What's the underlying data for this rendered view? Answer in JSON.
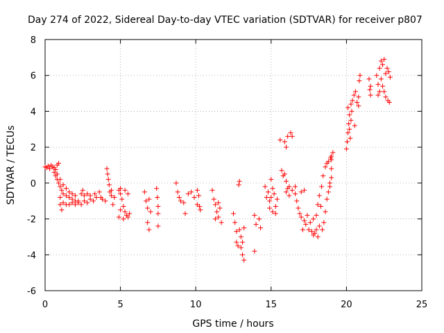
{
  "chart_data": {
    "type": "scatter",
    "title": "Day 274 of 2022, Sidereal Day-to-day VTEC variation (SDTVAR) for receiver p807",
    "xlabel": "GPS time / hours",
    "ylabel": "SDTVAR / TECUs",
    "xlim": [
      0,
      25
    ],
    "ylim": [
      -6,
      8
    ],
    "xticks": [
      0,
      5,
      10,
      15,
      20,
      25
    ],
    "yticks": [
      -6,
      -4,
      -2,
      0,
      2,
      4,
      6,
      8
    ],
    "xtick_labels": [
      "0",
      "5",
      "10",
      "15",
      "20",
      "25"
    ],
    "ytick_labels": [
      "-6",
      "-4",
      "-2",
      "0",
      "2",
      "4",
      "6",
      "8"
    ],
    "grid": true,
    "marker": "+",
    "color": "#ff0000",
    "series": [
      {
        "name": "SDTVAR",
        "points": [
          [
            0.0,
            0.9
          ],
          [
            0.1,
            0.85
          ],
          [
            0.2,
            0.95
          ],
          [
            0.3,
            0.8
          ],
          [
            0.4,
            1.0
          ],
          [
            0.5,
            0.9
          ],
          [
            0.6,
            0.85
          ],
          [
            0.7,
            0.75
          ],
          [
            0.8,
            1.0
          ],
          [
            0.9,
            1.1
          ],
          [
            0.6,
            0.6
          ],
          [
            0.7,
            0.4
          ],
          [
            0.8,
            0.2
          ],
          [
            0.9,
            0.0
          ],
          [
            1.0,
            -0.2
          ],
          [
            1.1,
            -0.4
          ],
          [
            1.2,
            -0.6
          ],
          [
            1.4,
            -0.7
          ],
          [
            1.6,
            -0.8
          ],
          [
            1.8,
            -0.9
          ],
          [
            2.0,
            -1.0
          ],
          [
            2.2,
            -1.0
          ],
          [
            0.8,
            0.5
          ],
          [
            1.0,
            0.2
          ],
          [
            1.2,
            -0.1
          ],
          [
            1.4,
            -0.3
          ],
          [
            1.6,
            -0.5
          ],
          [
            1.8,
            -0.6
          ],
          [
            2.0,
            -0.7
          ],
          [
            1.0,
            -0.8
          ],
          [
            1.0,
            -1.2
          ],
          [
            1.1,
            -1.5
          ],
          [
            1.2,
            -1.1
          ],
          [
            1.4,
            -1.2
          ],
          [
            1.6,
            -1.2
          ],
          [
            1.8,
            -1.1
          ],
          [
            2.0,
            -1.2
          ],
          [
            2.2,
            -1.1
          ],
          [
            2.4,
            -1.2
          ],
          [
            2.6,
            -1.0
          ],
          [
            2.8,
            -1.1
          ],
          [
            3.0,
            -0.9
          ],
          [
            3.2,
            -1.0
          ],
          [
            3.4,
            -0.8
          ],
          [
            2.4,
            -0.6
          ],
          [
            2.5,
            -0.4
          ],
          [
            2.6,
            -0.7
          ],
          [
            2.8,
            -0.6
          ],
          [
            3.0,
            -0.7
          ],
          [
            3.3,
            -0.6
          ],
          [
            3.6,
            -0.5
          ],
          [
            3.7,
            -0.8
          ],
          [
            3.8,
            -0.9
          ],
          [
            4.0,
            -1.0
          ],
          [
            4.1,
            0.8
          ],
          [
            4.15,
            0.5
          ],
          [
            4.2,
            0.2
          ],
          [
            4.25,
            -0.1
          ],
          [
            4.3,
            -0.5
          ],
          [
            4.4,
            -0.7
          ],
          [
            4.5,
            -1.2
          ],
          [
            4.6,
            -0.8
          ],
          [
            4.4,
            -0.4
          ],
          [
            4.9,
            -0.4
          ],
          [
            5.0,
            -0.6
          ],
          [
            5.1,
            -0.9
          ],
          [
            5.2,
            -1.3
          ],
          [
            5.3,
            -1.6
          ],
          [
            5.4,
            -1.8
          ],
          [
            5.5,
            -1.9
          ],
          [
            5.6,
            -1.7
          ],
          [
            5.3,
            -0.4
          ],
          [
            5.5,
            -0.6
          ],
          [
            4.9,
            -1.9
          ],
          [
            5.0,
            -1.5
          ],
          [
            5.2,
            -2.0
          ],
          [
            5.0,
            -0.3
          ],
          [
            6.6,
            -0.5
          ],
          [
            6.7,
            -1.0
          ],
          [
            6.8,
            -1.4
          ],
          [
            6.8,
            -2.2
          ],
          [
            6.9,
            -2.6
          ],
          [
            7.0,
            -1.6
          ],
          [
            6.9,
            -0.9
          ],
          [
            7.4,
            -0.3
          ],
          [
            7.45,
            -0.8
          ],
          [
            7.5,
            -1.3
          ],
          [
            7.5,
            -1.7
          ],
          [
            7.5,
            -2.4
          ],
          [
            8.7,
            0.0
          ],
          [
            8.8,
            -0.5
          ],
          [
            8.9,
            -0.8
          ],
          [
            9.0,
            -1.0
          ],
          [
            9.2,
            -1.1
          ],
          [
            9.3,
            -1.7
          ],
          [
            9.5,
            -0.6
          ],
          [
            9.7,
            -0.5
          ],
          [
            9.9,
            -0.8
          ],
          [
            10.1,
            -0.4
          ],
          [
            10.2,
            -0.7
          ],
          [
            10.25,
            -1.3
          ],
          [
            10.3,
            -1.5
          ],
          [
            10.1,
            -1.2
          ],
          [
            11.1,
            -0.4
          ],
          [
            11.2,
            -0.9
          ],
          [
            11.3,
            -1.2
          ],
          [
            11.4,
            -1.6
          ],
          [
            11.5,
            -1.9
          ],
          [
            11.6,
            -1.4
          ],
          [
            11.7,
            -2.2
          ],
          [
            11.3,
            -2.0
          ],
          [
            11.5,
            -1.1
          ],
          [
            12.5,
            -1.7
          ],
          [
            12.6,
            -2.2
          ],
          [
            12.7,
            -2.7
          ],
          [
            12.7,
            -3.3
          ],
          [
            12.8,
            -3.5
          ],
          [
            12.9,
            -2.6
          ],
          [
            13.0,
            -3.0
          ],
          [
            13.0,
            -3.6
          ],
          [
            13.1,
            -4.0
          ],
          [
            13.2,
            -4.3
          ],
          [
            13.1,
            -3.3
          ],
          [
            13.2,
            -2.5
          ],
          [
            12.9,
            0.1
          ],
          [
            12.85,
            -0.1
          ],
          [
            13.9,
            -1.8
          ],
          [
            14.0,
            -2.3
          ],
          [
            14.2,
            -2.0
          ],
          [
            14.3,
            -2.5
          ],
          [
            13.9,
            -3.8
          ],
          [
            14.6,
            -0.2
          ],
          [
            14.8,
            -0.5
          ],
          [
            14.9,
            -1.0
          ],
          [
            15.0,
            -0.8
          ],
          [
            15.0,
            0.2
          ],
          [
            15.1,
            -0.3
          ],
          [
            15.2,
            -0.6
          ],
          [
            15.3,
            -1.3
          ],
          [
            15.3,
            -1.7
          ],
          [
            15.4,
            -0.9
          ],
          [
            14.9,
            -1.4
          ],
          [
            15.1,
            -1.6
          ],
          [
            14.7,
            -0.8
          ],
          [
            15.7,
            0.7
          ],
          [
            15.8,
            0.4
          ],
          [
            15.9,
            0.5
          ],
          [
            16.0,
            0.1
          ],
          [
            16.1,
            -0.3
          ],
          [
            16.2,
            -0.7
          ],
          [
            16.0,
            -0.5
          ],
          [
            16.2,
            -0.2
          ],
          [
            15.6,
            2.4
          ],
          [
            15.9,
            2.3
          ],
          [
            16.0,
            2.0
          ],
          [
            16.1,
            2.6
          ],
          [
            16.3,
            2.8
          ],
          [
            16.4,
            2.6
          ],
          [
            16.4,
            -0.4
          ],
          [
            16.6,
            -0.6
          ],
          [
            16.7,
            -1.0
          ],
          [
            16.8,
            -1.4
          ],
          [
            16.9,
            -1.7
          ],
          [
            17.0,
            -1.9
          ],
          [
            17.2,
            -2.1
          ],
          [
            17.3,
            -2.3
          ],
          [
            17.4,
            -1.8
          ],
          [
            17.0,
            -0.5
          ],
          [
            17.2,
            -0.4
          ],
          [
            16.6,
            -0.2
          ],
          [
            17.1,
            -2.6
          ],
          [
            17.5,
            -2.6
          ],
          [
            17.7,
            -2.7
          ],
          [
            17.8,
            -2.9
          ],
          [
            17.9,
            -2.8
          ],
          [
            18.0,
            -2.6
          ],
          [
            18.1,
            -3.0
          ],
          [
            18.2,
            -2.4
          ],
          [
            17.6,
            -2.2
          ],
          [
            17.8,
            -2.0
          ],
          [
            18.3,
            -1.3
          ],
          [
            18.0,
            -1.8
          ],
          [
            18.1,
            -1.2
          ],
          [
            18.2,
            -0.7
          ],
          [
            18.35,
            -0.2
          ],
          [
            18.45,
            0.4
          ],
          [
            18.6,
            0.9
          ],
          [
            18.7,
            1.1
          ],
          [
            18.8,
            1.2
          ],
          [
            18.95,
            1.4
          ],
          [
            19.0,
            1.5
          ],
          [
            19.1,
            1.7
          ],
          [
            19.0,
            1.3
          ],
          [
            18.7,
            -0.9
          ],
          [
            18.8,
            -0.5
          ],
          [
            18.9,
            -0.2
          ],
          [
            19.0,
            0.3
          ],
          [
            19.0,
            0.8
          ],
          [
            18.9,
            0.0
          ],
          [
            18.6,
            -1.6
          ],
          [
            18.5,
            -2.2
          ],
          [
            18.4,
            -2.6
          ],
          [
            20.0,
            1.9
          ],
          [
            20.05,
            2.3
          ],
          [
            20.1,
            2.8
          ],
          [
            20.15,
            3.3
          ],
          [
            20.2,
            3.8
          ],
          [
            20.25,
            2.5
          ],
          [
            20.3,
            3.5
          ],
          [
            20.3,
            4.4
          ],
          [
            20.35,
            4.0
          ],
          [
            20.4,
            4.6
          ],
          [
            20.5,
            4.9
          ],
          [
            20.55,
            3.2
          ],
          [
            20.6,
            5.1
          ],
          [
            20.7,
            4.5
          ],
          [
            20.8,
            4.3
          ],
          [
            20.85,
            5.7
          ],
          [
            20.9,
            6.0
          ],
          [
            20.8,
            4.8
          ],
          [
            20.1,
            4.2
          ],
          [
            20.2,
            3.0
          ],
          [
            21.5,
            5.8
          ],
          [
            21.6,
            5.4
          ],
          [
            21.6,
            4.9
          ],
          [
            21.55,
            5.2
          ],
          [
            22.0,
            6.0
          ],
          [
            22.1,
            5.5
          ],
          [
            22.1,
            4.9
          ],
          [
            22.2,
            6.4
          ],
          [
            22.3,
            5.8
          ],
          [
            22.3,
            6.8
          ],
          [
            22.4,
            5.4
          ],
          [
            22.4,
            6.6
          ],
          [
            22.5,
            5.1
          ],
          [
            22.6,
            6.1
          ],
          [
            22.6,
            4.8
          ],
          [
            22.7,
            6.4
          ],
          [
            22.75,
            4.6
          ],
          [
            22.8,
            6.2
          ],
          [
            22.85,
            4.5
          ],
          [
            22.5,
            6.9
          ],
          [
            22.2,
            5.1
          ],
          [
            22.9,
            5.9
          ]
        ]
      }
    ]
  }
}
